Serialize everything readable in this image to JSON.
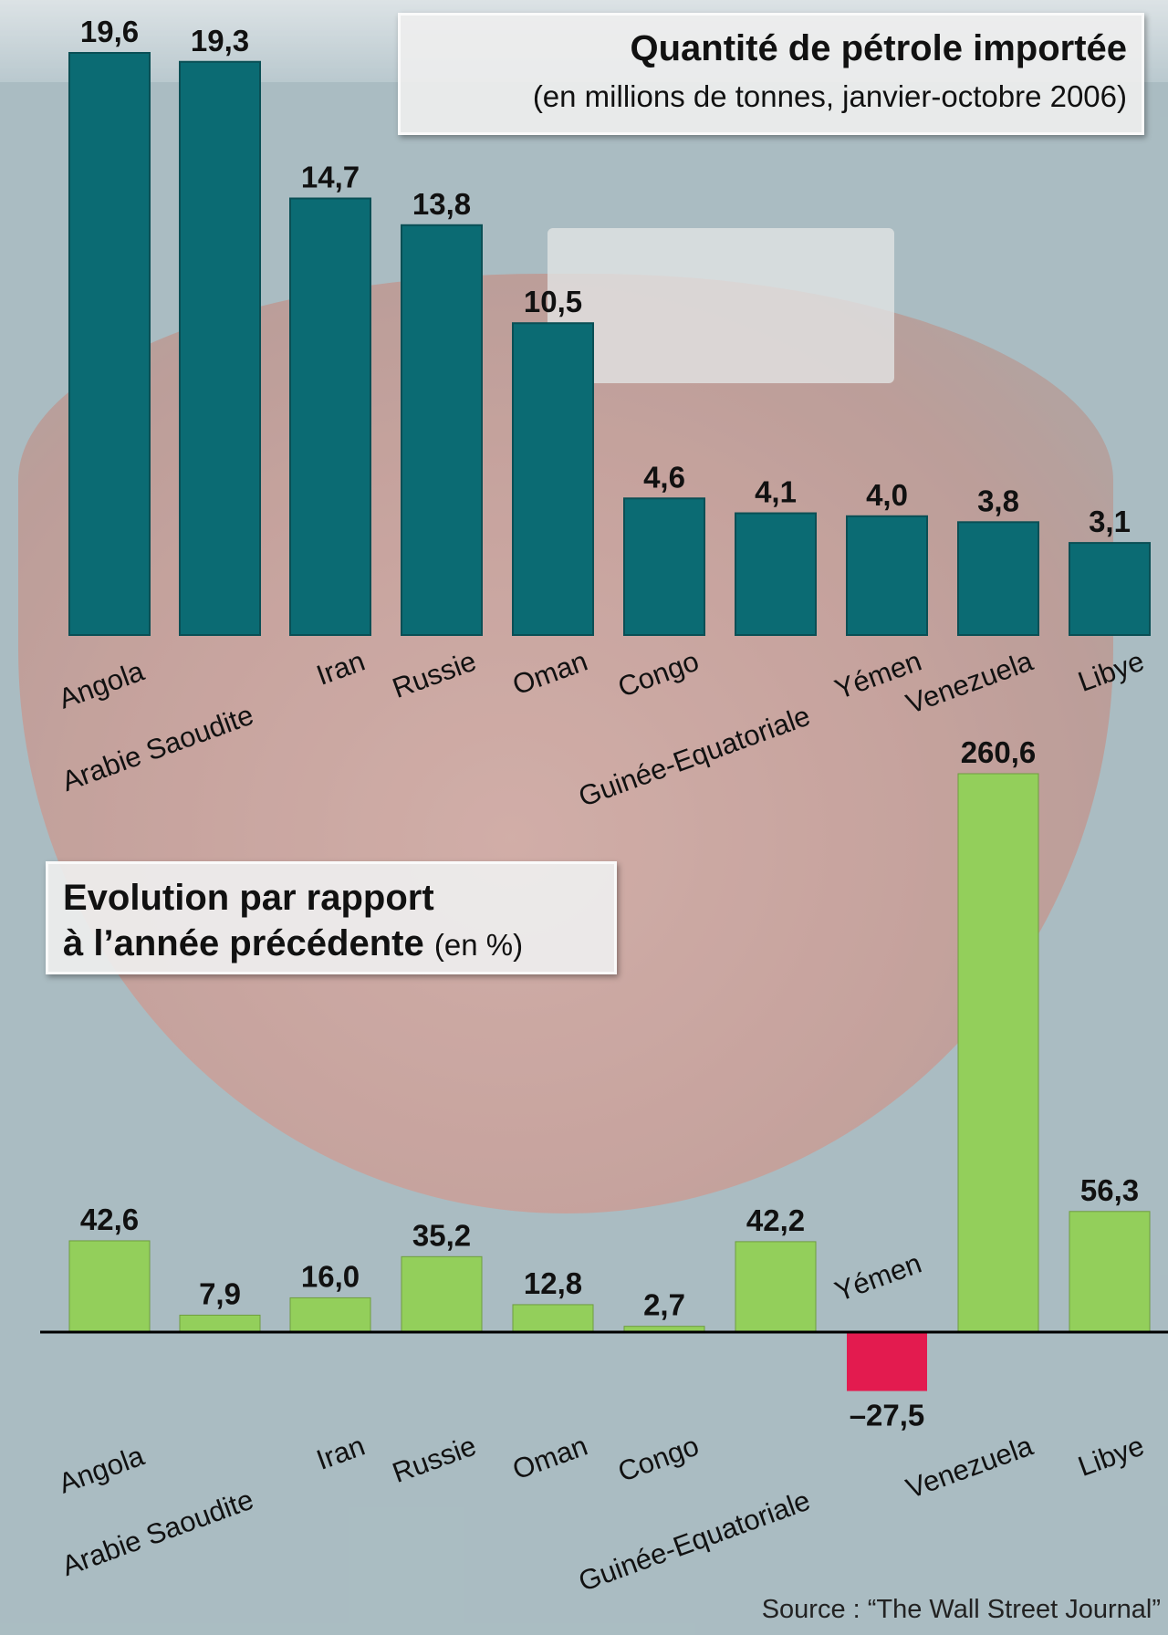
{
  "chart_data": [
    {
      "type": "bar",
      "title": "Quantité de pétrole importée",
      "subtitle": "(en millions de tonnes, janvier-octobre 2006)",
      "categories": [
        "Angola",
        "Arabie Saoudite",
        "Iran",
        "Russie",
        "Oman",
        "Congo",
        "Guinée-Equatoriale",
        "Yémen",
        "Venezuela",
        "Libye"
      ],
      "values": [
        19.6,
        19.3,
        14.7,
        13.8,
        10.5,
        4.6,
        4.1,
        4.0,
        3.8,
        3.1
      ],
      "value_labels": [
        "19,6",
        "19,3",
        "14,7",
        "13,8",
        "10,5",
        "4,6",
        "4,1",
        "4,0",
        "3,8",
        "3,1"
      ],
      "ylim": [
        0,
        19.6
      ],
      "grid": false,
      "colors": {
        "bar": "#0b6b73",
        "bar_edge": "#0a4f55"
      }
    },
    {
      "type": "bar",
      "title": "Evolution par rapport à l’année précédente",
      "title_unit": "(en %)",
      "categories": [
        "Angola",
        "Arabie Saoudite",
        "Iran",
        "Russie",
        "Oman",
        "Congo",
        "Guinée-Equatoriale",
        "Yémen",
        "Venezuela",
        "Libye"
      ],
      "values": [
        42.6,
        7.9,
        16.0,
        35.2,
        12.8,
        2.7,
        42.2,
        -27.5,
        260.6,
        56.3
      ],
      "value_labels": [
        "42,6",
        "7,9",
        "16,0",
        "35,2",
        "12,8",
        "2,7",
        "42,2",
        "–27,5",
        "260,6",
        "56,3"
      ],
      "ylim": [
        -27.5,
        260.6
      ],
      "grid": false,
      "colors": {
        "positive": "#93cf5b",
        "negative": "#e31b4f",
        "axis": "#000000"
      }
    }
  ],
  "title1_lines": [
    "Quantité de pétrole importée",
    "(en millions de tonnes, janvier-octobre 2006)"
  ],
  "title2_lines": [
    "Evolution par rapport",
    "à l’année précédente",
    "(en %)"
  ],
  "source": "Source : “The Wall Street Journal”"
}
